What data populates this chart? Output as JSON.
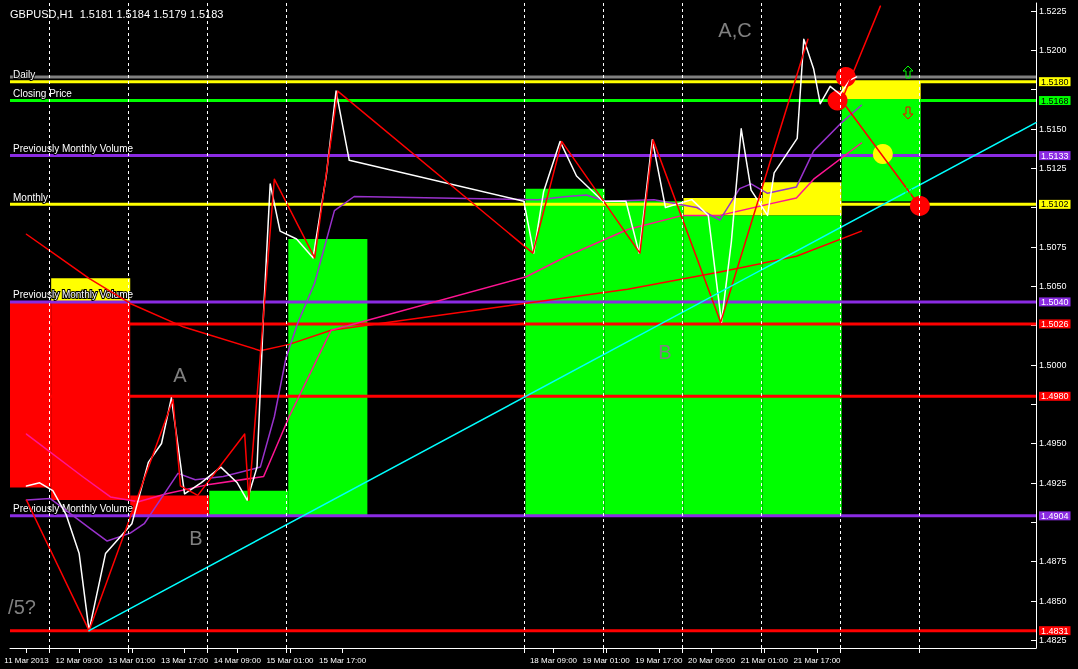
{
  "chart_data": {
    "type": "line",
    "title": "GBPUSD,H1  1.5181 1.5184 1.5179 1.5183",
    "grid": "x",
    "xlim": [
      "2013-03-11T12:00",
      "2013-03-24T11:30"
    ],
    "xticks": [
      {
        "value": "2013-03-11T17:00",
        "label": "11 Mar 2013"
      },
      {
        "value": "2013-03-12T09:00",
        "label": "12 Mar 09:00"
      },
      {
        "value": "2013-03-13T01:00",
        "label": "13 Mar 01:00"
      },
      {
        "value": "2013-03-13T17:00",
        "label": "13 Mar 17:00"
      },
      {
        "value": "2013-03-14T09:00",
        "label": "14 Mar 09:00"
      },
      {
        "value": "2013-03-15T01:00",
        "label": "15 Mar 01:00"
      },
      {
        "value": "2013-03-15T17:00",
        "label": "15 Mar 17:00"
      },
      {
        "value": "2013-03-18T09:00",
        "label": "18 Mar 09:00"
      },
      {
        "value": "2013-03-19T01:00",
        "label": "19 Mar 01:00"
      },
      {
        "value": "2013-03-19T17:00",
        "label": "19 Mar 17:00"
      },
      {
        "value": "2013-03-20T09:00",
        "label": "20 Mar 09:00"
      },
      {
        "value": "2013-03-21T01:00",
        "label": "21 Mar 01:00"
      },
      {
        "value": "2013-03-21T17:00",
        "label": "21 Mar 17:00"
      },
      {
        "value": "2013-03-12T00:00",
        "label": null
      },
      {
        "value": "2013-03-13T00:00",
        "label": null
      },
      {
        "value": "2013-03-14T00:00",
        "label": null
      },
      {
        "value": "2013-03-15T00:00",
        "label": null
      },
      {
        "value": "2013-03-18T00:00",
        "label": null
      },
      {
        "value": "2013-03-19T00:00",
        "label": null
      },
      {
        "value": "2013-03-20T00:00",
        "label": null
      },
      {
        "value": "2013-03-21T00:00",
        "label": null
      },
      {
        "value": "2013-03-22T00:00",
        "label": null
      },
      {
        "value": "2013-03-23T00:00",
        "label": null
      }
    ],
    "ylim": [
      1.482,
      1.523
    ],
    "yticks": [
      1.4825,
      1.4831,
      {
        "value": 1.485,
        "label": "1.4850"
      },
      1.4875,
      {
        "value": 1.49,
        "label": null
      },
      1.4904,
      1.4925,
      {
        "value": 1.495,
        "label": "1.4950"
      },
      {
        "value": 1.4975,
        "label": null
      },
      {
        "value": 1.498,
        "label": "1.4980"
      },
      {
        "value": 1.5,
        "label": "1.5000"
      },
      {
        "value": 1.5025,
        "label": null
      },
      1.5026,
      {
        "value": 1.504,
        "label": "1.5040"
      },
      {
        "value": 1.505,
        "label": "1.5050"
      },
      1.5075,
      {
        "value": 1.51,
        "label": null
      },
      1.5102,
      1.5125,
      1.5133,
      {
        "value": 1.515,
        "label": "1.5150"
      },
      1.5168,
      {
        "value": 1.5175,
        "label": null
      },
      {
        "value": 1.518,
        "label": "1.5180"
      },
      {
        "value": 1.52,
        "label": "1.5200"
      },
      1.5225
    ],
    "ref_lines": [
      {
        "axis": "y",
        "value": 1.5183,
        "color": "#808080"
      },
      {
        "axis": "y",
        "value": 1.518,
        "label": "Daily",
        "color": "#ffff00"
      },
      {
        "axis": "y",
        "value": 1.5168,
        "label": "Closing Price",
        "color": "#00ff00"
      },
      {
        "axis": "y",
        "value": 1.5133,
        "label": "Previously Monthly Volume",
        "color": "#8a2be2"
      },
      {
        "axis": "y",
        "value": 1.5102,
        "label": "Monthly",
        "color": "#ffff00"
      },
      {
        "axis": "y",
        "value": 1.504,
        "label": "Previously Monthly Volume",
        "color": "#8a2be2"
      },
      {
        "axis": "y",
        "value": 1.5026,
        "color": "#ff0000"
      },
      {
        "axis": "y",
        "value": 1.498,
        "color": "#ff0000"
      },
      {
        "axis": "y",
        "value": 1.4904,
        "label": "Previously Monthly Volume",
        "color": "#8a2be2"
      },
      {
        "axis": "y",
        "value": 1.4831,
        "color": "#ff0000"
      }
    ],
    "annotations": [
      "A",
      "B",
      "A,C",
      "B",
      "/5?"
    ],
    "series": [
      {
        "type": "bar",
        "color": "#ff0000",
        "x": [
          "2013-03-11T12:30",
          "2013-03-12T12:30",
          "2013-03-13T12:30"
        ],
        "base": [
          1.4922,
          1.4914,
          1.4904
        ],
        "values": [
          0.0118,
          0.0126,
          0.0013
        ]
      },
      {
        "type": "bar",
        "color": "#ffff00",
        "x": [
          "2013-03-12T12:30",
          "2013-03-20T12:30",
          "2013-03-21T12:30",
          "2013-03-22T12:30"
        ],
        "base": [
          1.504,
          1.5095,
          1.5095,
          1.5168
        ],
        "values": [
          0.0015,
          0.0011,
          0.0021,
          0.0012
        ]
      },
      {
        "type": "bar",
        "color": "#00ff00",
        "x": [
          "2013-03-14T12:30",
          "2013-03-15T12:30",
          "2013-03-18T12:30",
          "2013-03-19T12:30",
          "2013-03-20T12:30",
          "2013-03-21T12:30",
          "2013-03-22T12:30"
        ],
        "base": [
          1.4904,
          1.4904,
          1.4904,
          1.4904,
          1.4904,
          1.4904,
          1.5104
        ],
        "values": [
          0.0016,
          0.0176,
          0.0208,
          0.02,
          0.0191,
          0.0191,
          0.0064
        ]
      },
      {
        "color": "#ff0000",
        "x": [
          "2013-03-11T17:00",
          "2013-03-12T12:00",
          "2013-03-13T00:30",
          "2013-03-13T16:45",
          "2013-03-14T16:00",
          "2013-03-15T00:45",
          "2013-03-15T13:30",
          "2013-03-19T07:30",
          "2013-03-20T11:30",
          "2013-03-21T10:45",
          "2013-03-22T06:30"
        ],
        "values": [
          1.5083,
          1.5055,
          1.5039,
          1.5024,
          1.5009,
          1.5013,
          1.5022,
          1.5048,
          1.5059,
          1.5069,
          1.5085
        ]
      },
      {
        "color": "#ff1493",
        "x": [
          "2013-03-11T17:00",
          "2013-03-12T10:00",
          "2013-03-12T18:30",
          "2013-03-13T03:00",
          "2013-03-13T11:30",
          "2013-03-14T00:30",
          "2013-03-14T17:00",
          "2013-03-15T00:45",
          "2013-03-15T13:30",
          "2013-03-18T00:45",
          "2013-03-18T13:00",
          "2013-03-19T07:30",
          "2013-03-20T00:15",
          "2013-03-20T11:30",
          "2013-03-21T02:00",
          "2013-03-21T10:45",
          "2013-03-21T16:00",
          "2013-03-22T06:30"
        ],
        "values": [
          1.4956,
          1.4929,
          1.4916,
          1.4913,
          1.4918,
          1.4924,
          1.4929,
          1.4967,
          1.5022,
          1.5056,
          1.5069,
          1.5086,
          1.5095,
          1.5095,
          1.5102,
          1.5106,
          1.5118,
          1.5141
        ]
      },
      {
        "color": "#9932cc",
        "x": [
          "2013-03-11T17:00",
          "2013-03-12T00:15",
          "2013-03-12T12:15",
          "2013-03-12T17:30",
          "2013-03-13T00:30",
          "2013-03-13T04:45",
          "2013-03-13T15:00",
          "2013-03-13T20:15",
          "2013-03-14T04:45",
          "2013-03-14T16:00",
          "2013-03-14T20:15",
          "2013-03-14T23:45",
          "2013-03-15T03:15",
          "2013-03-15T08:30",
          "2013-03-15T14:30",
          "2013-03-15T20:30",
          "2013-03-18T04:15",
          "2013-03-18T13:00",
          "2013-03-18T19:00",
          "2013-03-19T01:00",
          "2013-03-19T15:30",
          "2013-03-20T04:30",
          "2013-03-20T11:30",
          "2013-03-20T17:30",
          "2013-03-20T21:00",
          "2013-03-21T02:00",
          "2013-03-21T10:45",
          "2013-03-21T16:00",
          "2013-03-22T00:30",
          "2013-03-22T06:30"
        ],
        "values": [
          1.4914,
          1.4915,
          1.4896,
          1.4888,
          1.4893,
          1.4899,
          1.4931,
          1.4927,
          1.4929,
          1.4935,
          1.4967,
          1.5004,
          1.5026,
          1.5052,
          1.5098,
          1.5107,
          1.5105,
          1.5107,
          1.5108,
          1.5104,
          1.5105,
          1.51,
          1.5092,
          1.5112,
          1.5115,
          1.5109,
          1.5113,
          1.5136,
          1.5154,
          1.5165
        ]
      },
      {
        "color": "#ffffff",
        "x": [
          "2013-03-11T17:00",
          "2013-03-11T21:00",
          "2013-03-12T01:00",
          "2013-03-12T05:00",
          "2013-03-12T09:00",
          "2013-03-12T12:00",
          "2013-03-12T17:00",
          "2013-03-13T01:00",
          "2013-03-13T06:00",
          "2013-03-13T10:00",
          "2013-03-13T13:00",
          "2013-03-13T17:00",
          "2013-03-13T22:00",
          "2013-03-14T04:00",
          "2013-03-14T09:00",
          "2013-03-14T12:00",
          "2013-03-14T15:00",
          "2013-03-14T17:00",
          "2013-03-14T19:00",
          "2013-03-14T22:00",
          "2013-03-15T03:00",
          "2013-03-15T08:00",
          "2013-03-15T12:00",
          "2013-03-15T15:00",
          "2013-03-15T19:00",
          "2013-03-18T00:00",
          "2013-03-18T03:00",
          "2013-03-18T06:00",
          "2013-03-18T11:00",
          "2013-03-18T16:00",
          "2013-03-19T00:00",
          "2013-03-19T07:00",
          "2013-03-19T11:00",
          "2013-03-19T15:00",
          "2013-03-19T19:00",
          "2013-03-20T03:00",
          "2013-03-20T08:00",
          "2013-03-20T12:00",
          "2013-03-20T15:00",
          "2013-03-20T18:00",
          "2013-03-20T21:00",
          "2013-03-21T02:00",
          "2013-03-21T04:00",
          "2013-03-21T11:00",
          "2013-03-21T13:00",
          "2013-03-21T16:00",
          "2013-03-21T18:00",
          "2013-03-21T21:00",
          "2013-03-22T00:00",
          "2013-03-22T03:00",
          "2013-03-22T05:00"
        ],
        "values": [
          1.4923,
          1.4925,
          1.492,
          1.4905,
          1.488,
          1.4831,
          1.488,
          1.4899,
          1.4938,
          1.495,
          1.4979,
          1.4918,
          1.4925,
          1.4935,
          1.4925,
          1.4914,
          1.4935,
          1.5034,
          1.5115,
          1.5085,
          1.508,
          1.5068,
          1.512,
          1.5174,
          1.513,
          1.5104,
          1.5071,
          1.511,
          1.5142,
          1.512,
          1.5104,
          1.5104,
          1.5071,
          1.5143,
          1.51,
          1.5105,
          1.5095,
          1.5027,
          1.5078,
          1.515,
          1.5111,
          1.5095,
          1.5122,
          1.5144,
          1.5207,
          1.5188,
          1.5166,
          1.5177,
          1.5172,
          1.5181,
          1.5183
        ]
      },
      {
        "color": "#ff0000",
        "x": [
          "2013-03-11T17:00",
          "2013-03-12T12:00",
          "2013-03-13T13:30",
          "2013-03-13T15:45",
          "2013-03-13T21:00",
          "2013-03-14T11:15",
          "2013-03-14T12:30",
          "2013-03-14T20:15",
          "2013-03-15T08:30",
          "2013-03-15T15:30",
          "2013-03-18T02:45",
          "2013-03-18T11:30",
          "2013-03-19T11:15",
          "2013-03-19T15:15",
          "2013-03-20T11:45",
          "2013-03-21T14:15"
        ],
        "values": [
          1.4914,
          1.4831,
          1.4978,
          1.4923,
          1.4917,
          1.4956,
          1.4914,
          1.5118,
          1.5068,
          1.5174,
          1.5071,
          1.5142,
          1.5071,
          1.5143,
          1.5027,
          1.5207
        ]
      },
      {
        "color": "#00ffff",
        "x": [
          "2013-03-12T12:00",
          "2013-03-24T11:30"
        ],
        "values": [
          1.4831,
          1.5154
        ]
      },
      {
        "color": "#ff0000",
        "x": [
          "2013-03-22T00:30",
          "2013-03-22T12:15"
        ],
        "values": [
          1.5168,
          1.5228
        ]
      },
      {
        "color": "#ff0000",
        "x": [
          "2013-03-22T00:30",
          "2013-03-23T00:30"
        ],
        "values": [
          1.5168,
          1.51
        ]
      },
      {
        "type": "scatter",
        "marker": "circle",
        "color": "#ff0000",
        "x": [
          "2013-03-22T01:45",
          "2013-03-21T23:15",
          "2013-03-23T00:15"
        ],
        "values": [
          1.5183,
          1.5168,
          1.5101
        ]
      },
      {
        "type": "scatter",
        "marker": "circle",
        "color": "#ffff00",
        "x": [
          "2013-03-22T13:00"
        ],
        "values": [
          1.5134
        ]
      }
    ]
  }
}
